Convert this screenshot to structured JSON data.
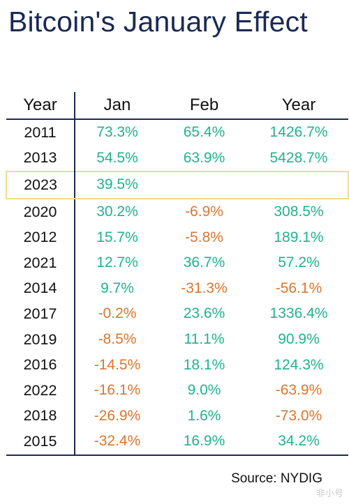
{
  "title": "Bitcoin's January Effect",
  "source": "Source: NYDIG",
  "watermark": "非小号",
  "colors": {
    "positive": "#1fb38f",
    "negative": "#d9762f",
    "header_rule": "#1b2a52",
    "highlight": "#f2dc8a"
  },
  "chart_data": {
    "type": "table",
    "title": "Bitcoin's January Effect",
    "columns": [
      "Year",
      "Jan",
      "Feb",
      "Year"
    ],
    "highlight_row_year": "2023",
    "rows": [
      {
        "year": "2011",
        "jan": "73.3%",
        "feb": "65.4%",
        "yearly": "1426.7%"
      },
      {
        "year": "2013",
        "jan": "54.5%",
        "feb": "63.9%",
        "yearly": "5428.7%"
      },
      {
        "year": "2023",
        "jan": "39.5%",
        "feb": "",
        "yearly": ""
      },
      {
        "year": "2020",
        "jan": "30.2%",
        "feb": "-6.9%",
        "yearly": "308.5%"
      },
      {
        "year": "2012",
        "jan": "15.7%",
        "feb": "-5.8%",
        "yearly": "189.1%"
      },
      {
        "year": "2021",
        "jan": "12.7%",
        "feb": "36.7%",
        "yearly": "57.2%"
      },
      {
        "year": "2014",
        "jan": "9.7%",
        "feb": "-31.3%",
        "yearly": "-56.1%"
      },
      {
        "year": "2017",
        "jan": "-0.2%",
        "feb": "23.6%",
        "yearly": "1336.4%"
      },
      {
        "year": "2019",
        "jan": "-8.5%",
        "feb": "11.1%",
        "yearly": "90.9%"
      },
      {
        "year": "2016",
        "jan": "-14.5%",
        "feb": "18.1%",
        "yearly": "124.3%"
      },
      {
        "year": "2022",
        "jan": "-16.1%",
        "feb": "9.0%",
        "yearly": "-63.9%"
      },
      {
        "year": "2018",
        "jan": "-26.9%",
        "feb": "1.6%",
        "yearly": "-73.0%"
      },
      {
        "year": "2015",
        "jan": "-32.4%",
        "feb": "16.9%",
        "yearly": "34.2%"
      }
    ]
  }
}
